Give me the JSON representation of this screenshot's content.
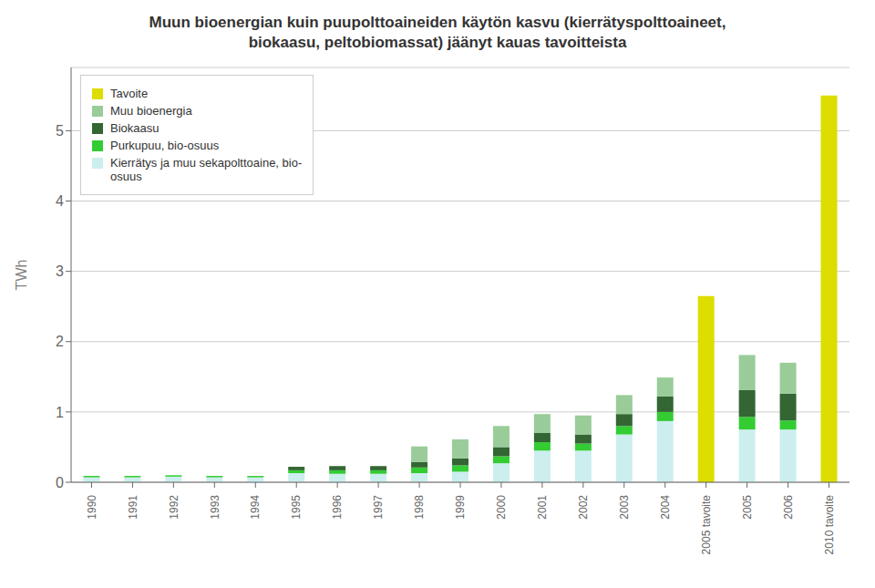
{
  "chart_data": {
    "type": "bar",
    "stacked": true,
    "title": "Muun bioenergian kuin puupolttoaineiden käytön kasvu (kierrätyspolttoaineet,\nbiokaasu, peltobiomassat) jäänyt kauas tavoitteista",
    "y_label": "TWh",
    "categories": [
      "1990",
      "1991",
      "1992",
      "1993",
      "1994",
      "1995",
      "1996",
      "1997",
      "1998",
      "1999",
      "2000",
      "2001",
      "2002",
      "2003",
      "2004",
      "2005 tavoite",
      "2005",
      "2006",
      "2010 tavoite"
    ],
    "series": [
      {
        "name": "Kierrätys ja muu sekapolttoaine, bio-\nosuus",
        "color": "#CCEEEE",
        "values": [
          0.07,
          0.07,
          0.08,
          0.07,
          0.07,
          0.13,
          0.12,
          0.12,
          0.13,
          0.15,
          0.27,
          0.45,
          0.45,
          0.68,
          0.87,
          0.0,
          0.75,
          0.75,
          0.0
        ]
      },
      {
        "name": "Purkupuu, bio-osuus",
        "color": "#33CC33",
        "values": [
          0.02,
          0.02,
          0.02,
          0.02,
          0.02,
          0.04,
          0.05,
          0.05,
          0.08,
          0.09,
          0.1,
          0.12,
          0.1,
          0.12,
          0.13,
          0.0,
          0.18,
          0.13,
          0.0
        ]
      },
      {
        "name": "Biokaasu",
        "color": "#336633",
        "values": [
          0.0,
          0.0,
          0.0,
          0.0,
          0.0,
          0.05,
          0.06,
          0.06,
          0.08,
          0.1,
          0.13,
          0.13,
          0.13,
          0.17,
          0.22,
          0.0,
          0.38,
          0.38,
          0.0
        ]
      },
      {
        "name": "Muu bioenergia",
        "color": "#99CC99",
        "values": [
          0.0,
          0.0,
          0.0,
          0.0,
          0.0,
          0.0,
          0.0,
          0.0,
          0.22,
          0.27,
          0.3,
          0.27,
          0.27,
          0.27,
          0.27,
          0.0,
          0.5,
          0.44,
          0.0
        ]
      },
      {
        "name": "Tavoite",
        "color": "#DDDD00",
        "values": [
          0.0,
          0.0,
          0.0,
          0.0,
          0.0,
          0.0,
          0.0,
          0.0,
          0.0,
          0.0,
          0.0,
          0.0,
          0.0,
          0.0,
          0.0,
          2.65,
          0.0,
          0.0,
          5.5
        ]
      }
    ],
    "ylim": [
      0,
      5.9
    ],
    "yticks": [
      0,
      1,
      2,
      3,
      4,
      5
    ],
    "grid": true,
    "legend": "upper left"
  }
}
